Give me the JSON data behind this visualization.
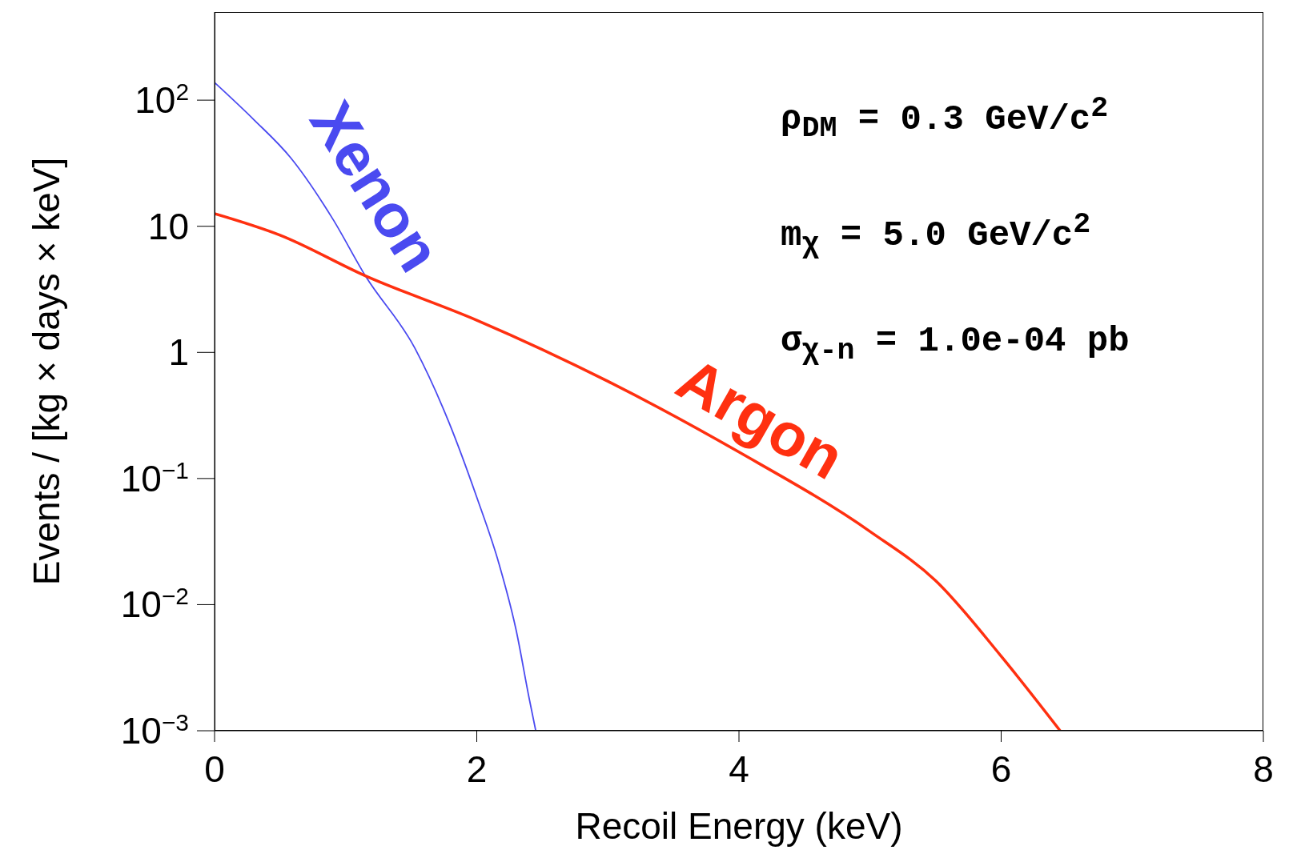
{
  "chart_data": {
    "type": "line",
    "xlabel": "Recoil Energy (keV)",
    "ylabel": "Events / [kg × days × keV]",
    "xlim": [
      0,
      8
    ],
    "xticks": [
      0,
      2,
      4,
      6,
      8
    ],
    "ylim": [
      0.001,
      500
    ],
    "log": "y",
    "yticks": [
      {
        "value": 0.001,
        "label": "10$^{−3}$"
      },
      {
        "value": 0.01,
        "label": "10$^{−2}$"
      },
      {
        "value": 0.1,
        "label": "10$^{−1}$"
      },
      1,
      10,
      {
        "value": 100,
        "label": "10$^{2}$"
      }
    ],
    "marker": "none",
    "line_style": "solid",
    "series": [
      {
        "name": "Xenon",
        "color": "#4a4af0",
        "x": [
          0,
          0.3,
          0.58,
          0.9,
          1.15,
          1.53,
          1.79,
          2.0,
          2.17,
          2.3,
          2.4,
          2.45
        ],
        "values": [
          138,
          70,
          35,
          11.5,
          4.05,
          1.07,
          0.275,
          0.071,
          0.021,
          0.0063,
          0.0018,
          0.001
        ]
      },
      {
        "name": "Argon",
        "color": "#ff3010",
        "x": [
          0,
          0.5,
          1.15,
          2,
          3,
          4,
          5,
          5.5,
          6,
          6.45
        ],
        "values": [
          12.6,
          8.5,
          4.05,
          1.8,
          0.59,
          0.162,
          0.038,
          0.0155,
          0.0039,
          0.001
        ]
      }
    ],
    "annotations": [
      "ρ$_{DM}$ = 0.3 GeV/c$^{2}$",
      "m$_{χ}$ = 5.0 GeV/c$^{2}$",
      "σ$_{χ-n}$ = 1.0e-04 pb"
    ]
  }
}
